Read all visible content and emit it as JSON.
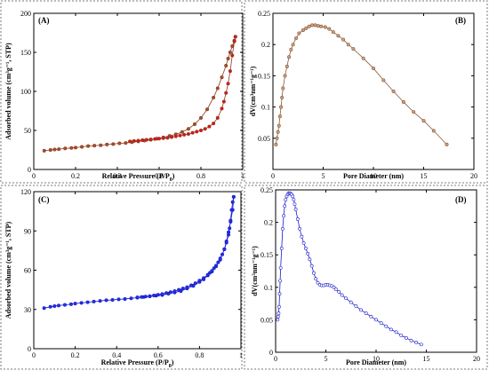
{
  "figure": {
    "panels": [
      {
        "id": "A",
        "label": "(A)",
        "xlabel": "Relative Pressure (P/P",
        "xlabel_sub": "0",
        "xlabel_end": ")",
        "ylabel": "Adsorbed volume (cm³g⁻¹, STP)",
        "color": "#8b3a1e",
        "marker": "#a0522d",
        "accent": "#e0141e"
      },
      {
        "id": "B",
        "label": "(B)",
        "xlabel": "Pore Diameter (nm)",
        "ylabel": "dV(cm³nm⁻¹g⁻¹)",
        "color": "#8a5a3c",
        "marker": "#c8a080"
      },
      {
        "id": "C",
        "label": "(C)",
        "xlabel": "Relative Pressure (P/P",
        "xlabel_sub": "0",
        "xlabel_end": ")",
        "ylabel": "Adsorbed volume (cm³g⁻¹, STP)",
        "color": "#1a1acc",
        "marker": "#2233dd"
      },
      {
        "id": "D",
        "label": "(D)",
        "xlabel": "Pore Diameter (nm)",
        "ylabel": "dV(cm³nm⁻¹g⁻¹)",
        "color": "#1a1acc",
        "marker": "#ffffff"
      }
    ]
  },
  "chart_data": [
    {
      "panel": "A",
      "type": "line",
      "title": "(A)",
      "xlabel": "Relative Pressure (P/P0)",
      "ylabel": "Adsorbed volume (cm3g-1, STP)",
      "xlim": [
        0,
        1
      ],
      "ylim": [
        0,
        200
      ],
      "xticks": [
        0,
        0.2,
        0.4,
        0.6,
        0.8,
        1
      ],
      "xtick_labels": [
        "0",
        "0.2",
        "0.4",
        "0.6",
        "0.8",
        "1"
      ],
      "yticks": [
        0,
        50,
        100,
        150,
        200
      ],
      "ytick_labels": [
        "0",
        "50",
        "100",
        "150",
        "200"
      ],
      "series": [
        {
          "x": [
            0.05,
            0.08,
            0.1,
            0.12,
            0.15,
            0.18,
            0.2,
            0.23,
            0.26,
            0.29,
            0.32,
            0.35,
            0.38,
            0.41,
            0.44,
            0.47,
            0.5,
            0.53,
            0.56,
            0.59,
            0.62,
            0.65,
            0.68,
            0.71,
            0.74,
            0.77,
            0.8,
            0.83,
            0.86,
            0.88,
            0.9,
            0.92,
            0.93,
            0.94,
            0.95,
            0.96,
            0.965
          ],
          "y": [
            24,
            25,
            25.5,
            26,
            27,
            27.5,
            28,
            29,
            30,
            30.5,
            31,
            32,
            32.5,
            33.5,
            34,
            35,
            36,
            37,
            38,
            39.5,
            41,
            43,
            45,
            48,
            52,
            58,
            66,
            77,
            92,
            104,
            118,
            133,
            142,
            150,
            158,
            165,
            170
          ]
        },
        {
          "x": [
            0.965,
            0.96,
            0.95,
            0.94,
            0.93,
            0.92,
            0.91,
            0.9,
            0.88,
            0.86,
            0.84,
            0.82,
            0.8,
            0.78,
            0.76,
            0.74,
            0.72,
            0.7,
            0.68,
            0.66,
            0.64,
            0.62,
            0.6,
            0.58,
            0.56,
            0.54,
            0.52,
            0.5,
            0.48,
            0.46
          ],
          "y": [
            170,
            164,
            146,
            126,
            110,
            98,
            87,
            78,
            66,
            59,
            55,
            52,
            50,
            48.5,
            47,
            45.5,
            44.5,
            43.5,
            42.5,
            41.5,
            40.5,
            40,
            39.5,
            39,
            38.5,
            38,
            37.5,
            37,
            36.5,
            36
          ]
        }
      ]
    },
    {
      "panel": "B",
      "type": "line",
      "title": "(B)",
      "xlabel": "Pore Diameter (nm)",
      "ylabel": "dV(cm3nm-1g-1)",
      "xlim": [
        0,
        20
      ],
      "ylim": [
        0,
        0.25
      ],
      "xticks": [
        0,
        5,
        10,
        15,
        20
      ],
      "xtick_labels": [
        "0",
        "5",
        "10",
        "15",
        "20"
      ],
      "yticks": [
        0.05,
        0.1,
        0.15,
        0.2,
        0.25
      ],
      "ytick_labels": [
        "0.05",
        "0.1",
        "0.15",
        "0.2",
        "0.25"
      ],
      "series": [
        {
          "x": [
            0.3,
            0.4,
            0.5,
            0.6,
            0.7,
            0.8,
            0.9,
            1.0,
            1.2,
            1.4,
            1.6,
            1.8,
            2.0,
            2.3,
            2.6,
            3.0,
            3.3,
            3.6,
            3.9,
            4.2,
            4.5,
            4.8,
            5.2,
            5.6,
            6.0,
            6.5,
            7.0,
            7.5,
            8.0,
            9.0,
            10.0,
            11.0,
            12.0,
            13.0,
            14.0,
            15.0,
            16.0,
            17.3
          ],
          "y": [
            0.04,
            0.05,
            0.06,
            0.07,
            0.085,
            0.1,
            0.115,
            0.13,
            0.15,
            0.165,
            0.18,
            0.192,
            0.2,
            0.21,
            0.218,
            0.223,
            0.226,
            0.229,
            0.231,
            0.231,
            0.23,
            0.229,
            0.228,
            0.225,
            0.22,
            0.214,
            0.208,
            0.2,
            0.193,
            0.178,
            0.162,
            0.143,
            0.125,
            0.108,
            0.092,
            0.078,
            0.062,
            0.04
          ]
        }
      ]
    },
    {
      "panel": "C",
      "type": "line",
      "title": "(C)",
      "xlabel": "Relative Pressure (P/P0)",
      "ylabel": "Adsorbed volume (cm3g-1, STP)",
      "xlim": [
        0,
        1
      ],
      "ylim": [
        0,
        120
      ],
      "xticks": [
        0,
        0.2,
        0.4,
        0.6,
        0.8,
        1
      ],
      "xtick_labels": [
        "0",
        "0.2",
        "0.4",
        "0.6",
        "0.8",
        "1"
      ],
      "yticks": [
        0,
        30,
        60,
        90,
        120
      ],
      "ytick_labels": [
        "0",
        "30",
        "60",
        "90",
        "120"
      ],
      "series": [
        {
          "x": [
            0.05,
            0.08,
            0.1,
            0.12,
            0.15,
            0.18,
            0.2,
            0.23,
            0.26,
            0.29,
            0.32,
            0.35,
            0.38,
            0.41,
            0.44,
            0.47,
            0.5,
            0.53,
            0.56,
            0.59,
            0.62,
            0.65,
            0.68,
            0.71,
            0.74,
            0.77,
            0.8,
            0.82,
            0.84,
            0.86,
            0.88,
            0.9,
            0.92,
            0.93,
            0.94,
            0.95,
            0.96,
            0.965
          ],
          "y": [
            31,
            32,
            32.5,
            33,
            33.5,
            34,
            34.5,
            35,
            35.5,
            36,
            36.5,
            37,
            37.3,
            37.7,
            38,
            38.5,
            39,
            39.5,
            40,
            40.5,
            41,
            42,
            43,
            44,
            46,
            48,
            51,
            53,
            56,
            59,
            63,
            68,
            76,
            82,
            89,
            97,
            106,
            116
          ]
        },
        {
          "x": [
            0.965,
            0.96,
            0.955,
            0.95,
            0.945,
            0.94,
            0.93,
            0.92,
            0.91,
            0.9,
            0.89,
            0.88,
            0.87,
            0.86,
            0.85,
            0.84,
            0.82,
            0.8,
            0.78,
            0.76,
            0.74,
            0.72,
            0.7,
            0.68,
            0.66,
            0.64,
            0.62,
            0.6,
            0.58,
            0.56,
            0.54,
            0.52,
            0.5
          ],
          "y": [
            116,
            112,
            106,
            98,
            92,
            87,
            81,
            76,
            72,
            69,
            66,
            63.5,
            61.5,
            59.5,
            58,
            56.5,
            54,
            52,
            50,
            48.5,
            47,
            46,
            45,
            44,
            43.2,
            42.5,
            41.8,
            41.2,
            40.7,
            40.2,
            39.8,
            39.5,
            39.2
          ]
        }
      ]
    },
    {
      "panel": "D",
      "type": "line",
      "title": "(D)",
      "xlabel": "Pore Diameter (nm)",
      "ylabel": "dV(cm3nm-1g-1)",
      "xlim": [
        0,
        20
      ],
      "ylim": [
        0,
        0.25
      ],
      "xticks": [
        0,
        5,
        10,
        15,
        20
      ],
      "xtick_labels": [
        "0",
        "5",
        "10",
        "15",
        "20"
      ],
      "yticks": [
        0,
        0.05,
        0.1,
        0.15,
        0.2,
        0.25
      ],
      "ytick_labels": [
        "0",
        "0.05",
        "0.1",
        "0.15",
        "0.2",
        "0.25"
      ],
      "series": [
        {
          "x": [
            0.2,
            0.25,
            0.3,
            0.35,
            0.4,
            0.45,
            0.5,
            0.6,
            0.7,
            0.8,
            0.9,
            1.0,
            1.1,
            1.2,
            1.3,
            1.4,
            1.5,
            1.6,
            1.7,
            1.8,
            1.9,
            2.0,
            2.2,
            2.4,
            2.6,
            2.8,
            3.0,
            3.2,
            3.4,
            3.6,
            3.8,
            4.0,
            4.2,
            4.4,
            4.6,
            4.8,
            5.0,
            5.2,
            5.4,
            5.6,
            5.8,
            6.0,
            6.3,
            6.6,
            7.0,
            7.5,
            8.0,
            8.5,
            9.0,
            9.5,
            10.0,
            10.5,
            11.0,
            11.5,
            12.0,
            12.5,
            13.0,
            13.5,
            14.0,
            14.5
          ],
          "y": [
            0.05,
            0.055,
            0.06,
            0.07,
            0.09,
            0.11,
            0.13,
            0.16,
            0.19,
            0.21,
            0.225,
            0.235,
            0.24,
            0.243,
            0.245,
            0.245,
            0.244,
            0.243,
            0.24,
            0.235,
            0.228,
            0.22,
            0.205,
            0.19,
            0.178,
            0.168,
            0.16,
            0.152,
            0.143,
            0.133,
            0.122,
            0.113,
            0.107,
            0.104,
            0.103,
            0.103,
            0.104,
            0.104,
            0.103,
            0.102,
            0.1,
            0.097,
            0.093,
            0.088,
            0.083,
            0.077,
            0.071,
            0.065,
            0.06,
            0.055,
            0.05,
            0.045,
            0.04,
            0.035,
            0.031,
            0.026,
            0.022,
            0.018,
            0.015,
            0.012
          ]
        }
      ]
    }
  ]
}
